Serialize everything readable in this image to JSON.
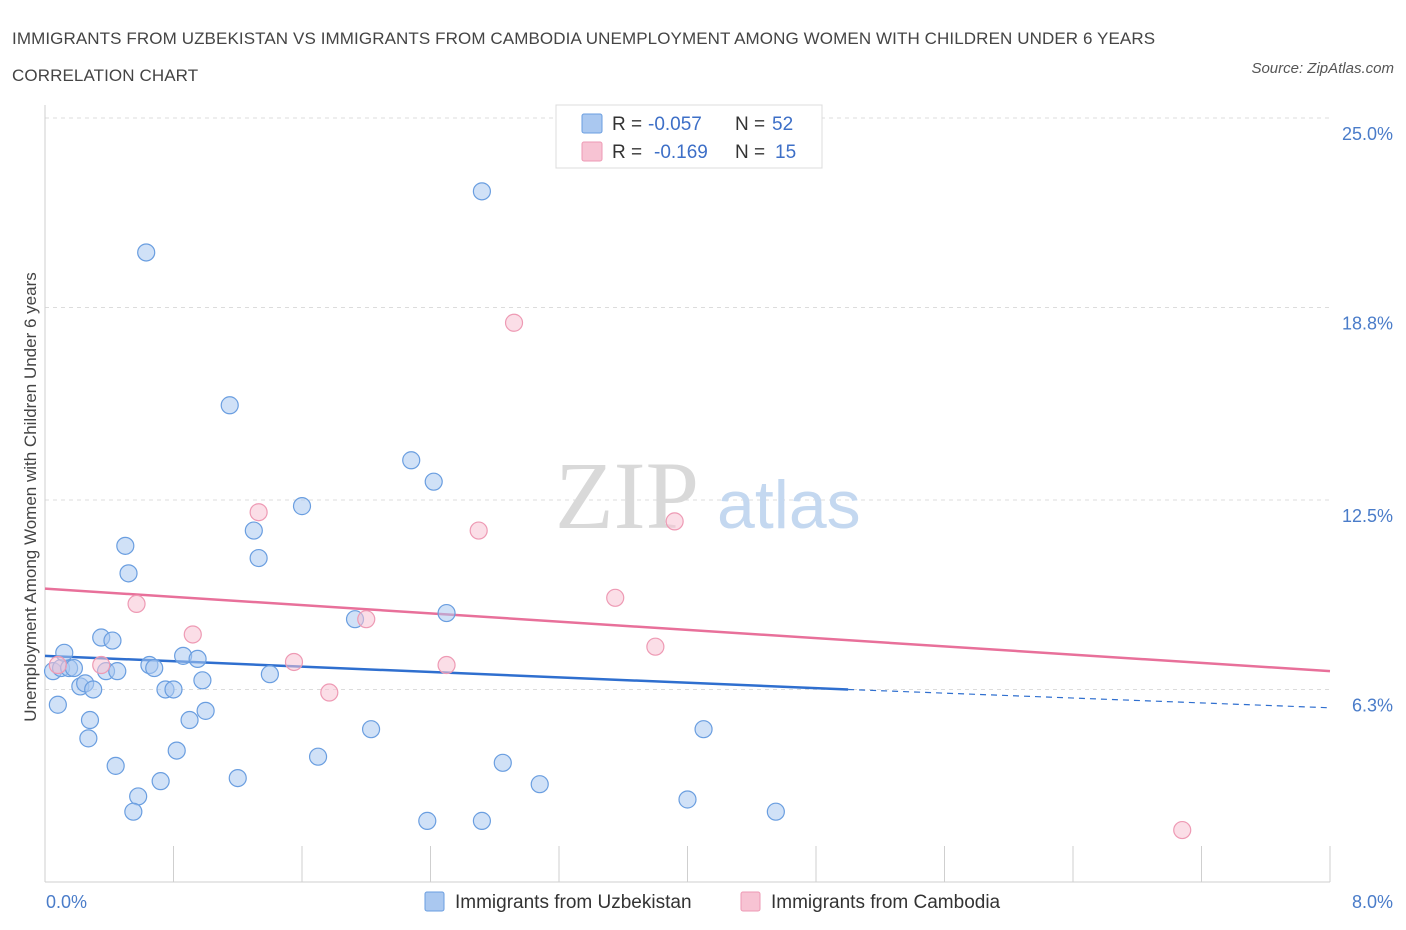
{
  "title": "IMMIGRANTS FROM UZBEKISTAN VS IMMIGRANTS FROM CAMBODIA UNEMPLOYMENT AMONG WOMEN WITH CHILDREN UNDER 6 YEARS CORRELATION CHART",
  "source": "Source: ZipAtlas.com",
  "watermark": {
    "zip": "ZIP",
    "atlas": "atlas"
  },
  "legend": {
    "rows": [
      {
        "r_label": "R =",
        "r_value": "-0.057",
        "n_label": "N =",
        "n_value": "52"
      },
      {
        "r_label": "R =",
        "r_value": "-0.169",
        "n_label": "N =",
        "n_value": "15"
      }
    ]
  },
  "colors": {
    "series1_fill": "#aac8f0",
    "series1_stroke": "#6a9ee0",
    "series1_line": "#2f6fcf",
    "series2_fill": "#f7c3d3",
    "series2_stroke": "#ee9ab4",
    "series2_line": "#e8709a"
  },
  "chart_data": {
    "type": "scatter",
    "title": "IMMIGRANTS FROM UZBEKISTAN VS IMMIGRANTS FROM CAMBODIA UNEMPLOYMENT AMONG WOMEN WITH CHILDREN UNDER 6 YEARS CORRELATION CHART",
    "xlabel": "",
    "ylabel": "Unemployment Among Women with Children Under 6 years",
    "xlim": [
      0,
      8.0
    ],
    "ylim": [
      0,
      25.0
    ],
    "x_tick_labels": [
      "0.0%",
      "8.0%"
    ],
    "y_ticks": [
      6.3,
      12.5,
      18.8,
      25.0
    ],
    "y_tick_labels": [
      "6.3%",
      "12.5%",
      "18.8%",
      "25.0%"
    ],
    "grid": true,
    "legend_position": "top-center",
    "series": [
      {
        "name": "Immigrants from Uzbekistan",
        "r": -0.057,
        "n": 52,
        "trend": {
          "x": [
            0.0,
            5.0
          ],
          "y": [
            7.4,
            6.3
          ],
          "dashed_to": [
            8.0,
            5.7
          ]
        },
        "points": [
          [
            0.05,
            6.9
          ],
          [
            0.1,
            7.0
          ],
          [
            0.15,
            7.0
          ],
          [
            0.12,
            7.5
          ],
          [
            0.18,
            7.0
          ],
          [
            0.22,
            6.4
          ],
          [
            0.25,
            6.5
          ],
          [
            0.3,
            6.3
          ],
          [
            0.08,
            5.8
          ],
          [
            0.28,
            5.3
          ],
          [
            0.27,
            4.7
          ],
          [
            0.35,
            8.0
          ],
          [
            0.42,
            7.9
          ],
          [
            0.38,
            6.9
          ],
          [
            0.45,
            6.9
          ],
          [
            0.5,
            11.0
          ],
          [
            0.52,
            10.1
          ],
          [
            0.44,
            3.8
          ],
          [
            0.58,
            2.8
          ],
          [
            0.55,
            2.3
          ],
          [
            0.63,
            20.6
          ],
          [
            0.65,
            7.1
          ],
          [
            0.68,
            7.0
          ],
          [
            0.72,
            3.3
          ],
          [
            0.75,
            6.3
          ],
          [
            0.8,
            6.3
          ],
          [
            0.82,
            4.3
          ],
          [
            0.86,
            7.4
          ],
          [
            0.9,
            5.3
          ],
          [
            0.95,
            7.3
          ],
          [
            0.98,
            6.6
          ],
          [
            1.0,
            5.6
          ],
          [
            1.15,
            15.6
          ],
          [
            1.2,
            3.4
          ],
          [
            1.3,
            11.5
          ],
          [
            1.33,
            10.6
          ],
          [
            1.4,
            6.8
          ],
          [
            1.6,
            12.3
          ],
          [
            1.7,
            4.1
          ],
          [
            1.93,
            8.6
          ],
          [
            2.03,
            5.0
          ],
          [
            2.28,
            13.8
          ],
          [
            2.38,
            2.0
          ],
          [
            2.42,
            13.1
          ],
          [
            2.5,
            8.8
          ],
          [
            2.72,
            22.6
          ],
          [
            2.72,
            2.0
          ],
          [
            2.85,
            3.9
          ],
          [
            3.08,
            3.2
          ],
          [
            4.0,
            2.7
          ],
          [
            4.1,
            5.0
          ],
          [
            4.55,
            2.3
          ]
        ]
      },
      {
        "name": "Immigrants from Cambodia",
        "r": -0.169,
        "n": 15,
        "trend": {
          "x": [
            0.0,
            8.0
          ],
          "y": [
            9.6,
            6.9
          ]
        },
        "points": [
          [
            0.08,
            7.1
          ],
          [
            0.35,
            7.1
          ],
          [
            0.57,
            9.1
          ],
          [
            0.92,
            8.1
          ],
          [
            1.33,
            12.1
          ],
          [
            1.55,
            7.2
          ],
          [
            1.77,
            6.2
          ],
          [
            2.0,
            8.6
          ],
          [
            2.5,
            7.1
          ],
          [
            2.7,
            11.5
          ],
          [
            2.92,
            18.3
          ],
          [
            3.55,
            9.3
          ],
          [
            3.8,
            7.7
          ],
          [
            3.92,
            11.8
          ],
          [
            7.08,
            1.7
          ]
        ]
      }
    ]
  }
}
